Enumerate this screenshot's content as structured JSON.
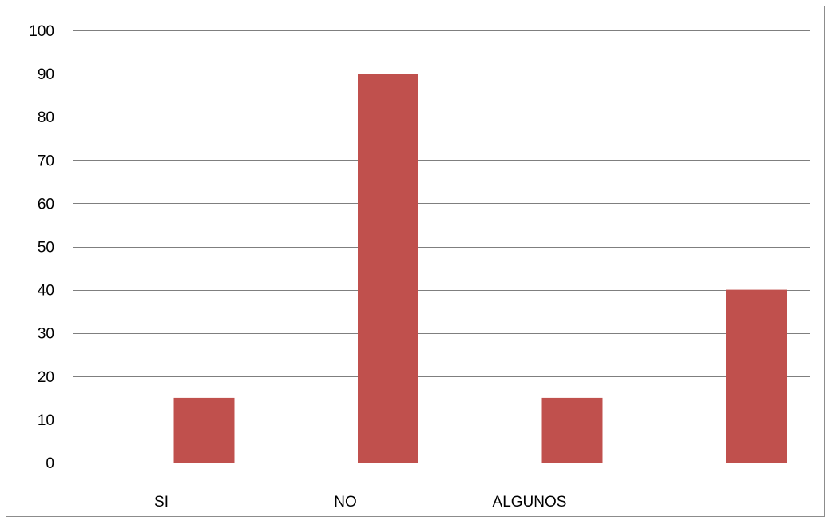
{
  "chart_data": {
    "type": "bar",
    "categories": [
      "SI",
      "NO",
      "ALGUNOS",
      ""
    ],
    "values": [
      15,
      90,
      15,
      40
    ],
    "ylim": [
      0,
      100
    ],
    "yticks": [
      0,
      10,
      20,
      30,
      40,
      50,
      60,
      70,
      80,
      90,
      100
    ],
    "grid": true,
    "legend": "none",
    "bar_color": "#c0504d",
    "grid_color": "#7f7f7f",
    "title": "",
    "xlabel": "",
    "ylabel": ""
  }
}
